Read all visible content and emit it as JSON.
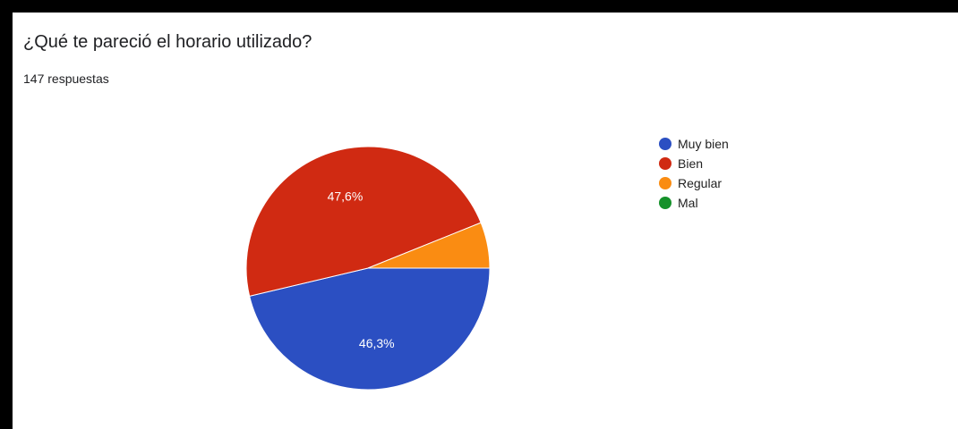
{
  "header": {
    "title": "¿Qué te pareció el horario utilizado?",
    "response_count": "147 respuestas"
  },
  "chart_data": {
    "type": "pie",
    "title": "¿Qué te pareció el horario utilizado?",
    "legend_position": "right",
    "slices": [
      {
        "label": "Muy bien",
        "percent": 46.3,
        "display": "46,3%",
        "color": "#2b4fc2",
        "show_label": true
      },
      {
        "label": "Bien",
        "percent": 47.6,
        "display": "47,6%",
        "color": "#d02a12",
        "show_label": true
      },
      {
        "label": "Regular",
        "percent": 6.1,
        "display": "",
        "color": "#fa8c12",
        "show_label": false
      },
      {
        "label": "Mal",
        "percent": 0,
        "display": "",
        "color": "#15912a",
        "show_label": false
      }
    ]
  }
}
